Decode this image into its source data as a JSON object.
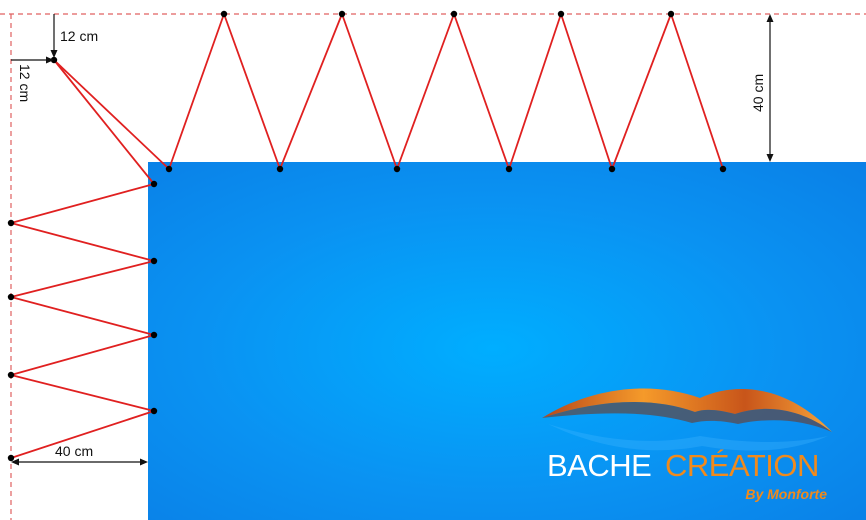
{
  "dimensions": {
    "corner_vertical": "12 cm",
    "corner_horizontal": "12 cm",
    "top_depth": "40 cm",
    "side_depth": "40 cm"
  },
  "logo": {
    "word1": "BACHE",
    "word2": "CRÉATION",
    "tagline": "By Monforte"
  },
  "colors": {
    "tarp": "#0a8cf0",
    "tarp_highlight": "#00aaff",
    "lacing": "#e02020",
    "guide_line": "#e06060",
    "anchor_point": "#000000",
    "logo_word1": "#ffffff",
    "logo_word2": "#f08a1c",
    "logo_tagline": "#f08a1c"
  }
}
